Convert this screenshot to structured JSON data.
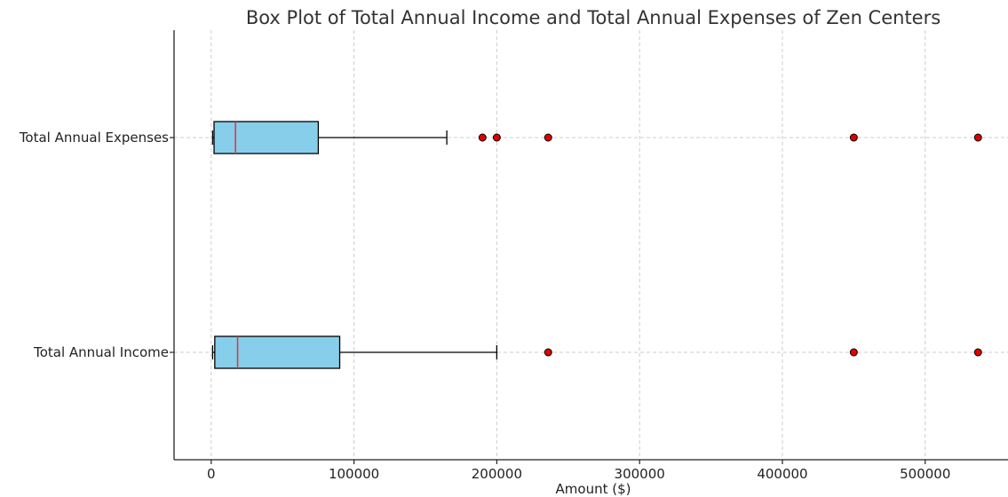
{
  "chart_data": {
    "type": "boxplot",
    "orientation": "horizontal",
    "title": "Box Plot of Total Annual Income and Total Annual Expenses of Zen Centers",
    "xlabel": "Amount ($)",
    "ylabel": "",
    "xlim": [
      -26000,
      558000
    ],
    "xticks": [
      0,
      100000,
      200000,
      300000,
      400000,
      500000
    ],
    "xtick_labels": [
      "0",
      "100000",
      "200000",
      "300000",
      "400000",
      "500000"
    ],
    "grid": true,
    "colors": {
      "box_fill": "#87ceeb",
      "median": "#e0342f",
      "flier_fill": "#dd0000",
      "grid": "#cccccc"
    },
    "categories": [
      "Total Annual Income",
      "Total Annual Expenses"
    ],
    "series": [
      {
        "label": "Total Annual Income",
        "whisker_low": 1000,
        "q1": 2500,
        "median": 18500,
        "q3": 90000,
        "whisker_high": 200000,
        "outliers": [
          236000,
          450000,
          537000
        ]
      },
      {
        "label": "Total Annual Expenses",
        "whisker_low": 1000,
        "q1": 2000,
        "median": 17000,
        "q3": 75000,
        "whisker_high": 165000,
        "outliers": [
          190000,
          200000,
          236000,
          450000,
          537000
        ]
      }
    ]
  }
}
